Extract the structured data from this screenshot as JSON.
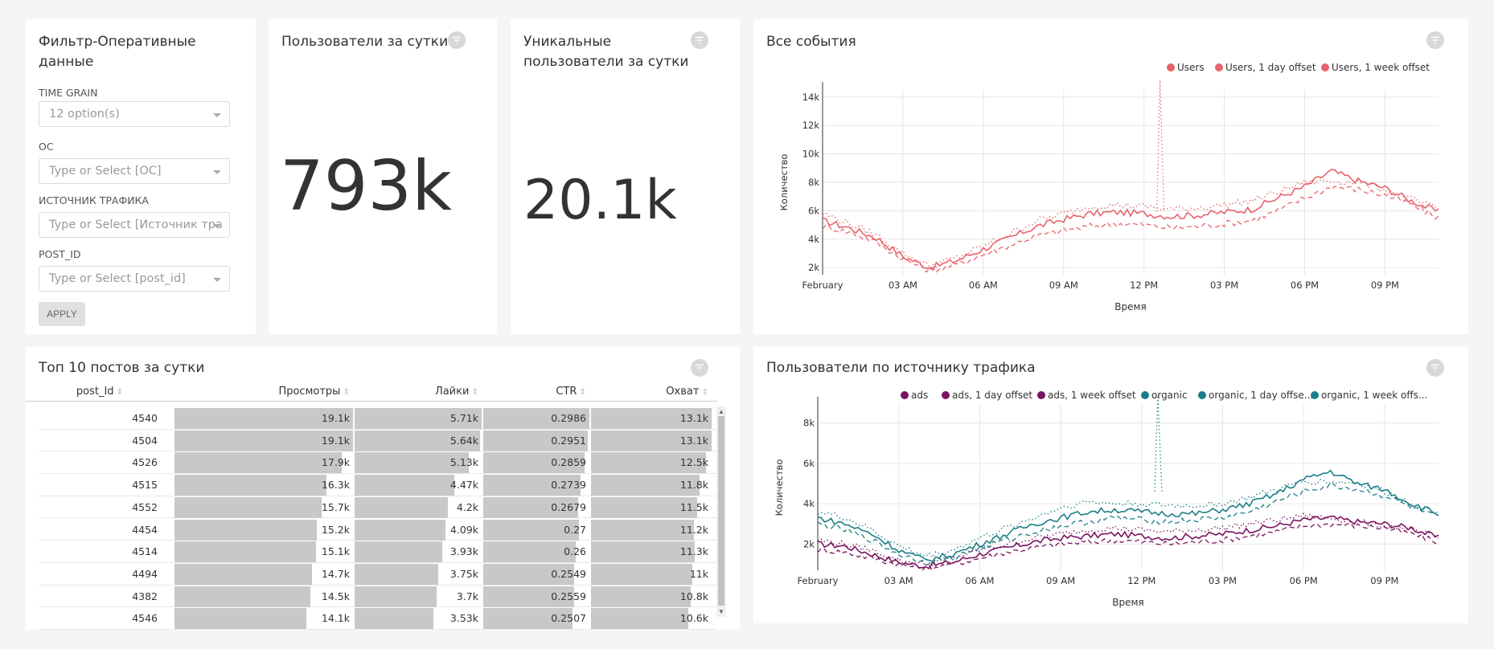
{
  "filter_panel": {
    "title_line1": "Фильтр-Оперативные",
    "title_line2": "данные",
    "time_grain_label": "TIME GRAIN",
    "time_grain_value": "12 option(s)",
    "os_label": "ОС",
    "os_placeholder": "Type or Select [ОС]",
    "source_label": "ИСТОЧНИК ТРАФИКА",
    "source_placeholder": "Type or Select [Источник тра",
    "post_label": "POST_ID",
    "post_placeholder": "Type or Select [post_id]",
    "apply_label": "APPLY"
  },
  "kpi_users": {
    "title": "Пользователи за сутки",
    "value": "793k"
  },
  "kpi_unique": {
    "title_line1": "Уникальные",
    "title_line2": "пользователи за сутки",
    "value": "20.1k"
  },
  "events_chart": {
    "title": "Все события",
    "legend": [
      "Users",
      "Users, 1 day offset",
      "Users, 1 week offset"
    ],
    "ylabel": "Количество",
    "xlabel": "Время",
    "yticks": [
      "2k",
      "4k",
      "6k",
      "8k",
      "10k",
      "12k",
      "14k"
    ],
    "xticks": [
      "February",
      "03 AM",
      "06 AM",
      "09 AM",
      "12 PM",
      "03 PM",
      "06 PM",
      "09 PM"
    ]
  },
  "top_posts": {
    "title": "Топ 10 постов за сутки",
    "columns": [
      "post_Id",
      "Просмотры",
      "Лайки",
      "CTR",
      "Охват"
    ],
    "rows": [
      [
        "4540",
        "19.1k",
        "5.71k",
        "0.2986",
        "13.1k"
      ],
      [
        "4504",
        "19.1k",
        "5.64k",
        "0.2951",
        "13.1k"
      ],
      [
        "4526",
        "17.9k",
        "5.13k",
        "0.2859",
        "12.5k"
      ],
      [
        "4515",
        "16.3k",
        "4.47k",
        "0.2739",
        "11.8k"
      ],
      [
        "4552",
        "15.7k",
        "4.2k",
        "0.2679",
        "11.5k"
      ],
      [
        "4454",
        "15.2k",
        "4.09k",
        "0.27",
        "11.2k"
      ],
      [
        "4514",
        "15.1k",
        "3.93k",
        "0.26",
        "11.3k"
      ],
      [
        "4494",
        "14.7k",
        "3.75k",
        "0.2549",
        "11k"
      ],
      [
        "4382",
        "14.5k",
        "3.7k",
        "0.2559",
        "10.8k"
      ],
      [
        "4546",
        "14.1k",
        "3.53k",
        "0.2507",
        "10.6k"
      ]
    ],
    "bar_fractions": [
      [
        1.0,
        1.0,
        1.0,
        1.0
      ],
      [
        1.0,
        0.988,
        0.988,
        1.0
      ],
      [
        0.937,
        0.898,
        0.957,
        0.954
      ],
      [
        0.853,
        0.783,
        0.917,
        0.901
      ],
      [
        0.822,
        0.736,
        0.897,
        0.878
      ],
      [
        0.796,
        0.716,
        0.904,
        0.855
      ],
      [
        0.791,
        0.688,
        0.871,
        0.863
      ],
      [
        0.77,
        0.657,
        0.854,
        0.84
      ],
      [
        0.759,
        0.648,
        0.857,
        0.824
      ],
      [
        0.738,
        0.618,
        0.84,
        0.809
      ]
    ]
  },
  "traffic_chart": {
    "title": "Пользователи по источнику трафика",
    "legend": [
      "ads",
      "ads, 1 day offset",
      "ads, 1 week offset",
      "organic",
      "organic, 1 day offse...",
      "organic, 1 week offs..."
    ],
    "ylabel": "Количество",
    "xlabel": "Время",
    "yticks": [
      "2k",
      "4k",
      "6k",
      "8k"
    ],
    "xticks": [
      "February",
      "03 AM",
      "06 AM",
      "09 AM",
      "12 PM",
      "03 PM",
      "06 PM",
      "09 PM"
    ]
  },
  "colors": {
    "users": "#e8636b",
    "ads": "#7a1460",
    "organic": "#1b7f87"
  },
  "chart_data": [
    {
      "type": "line",
      "title": "Все события",
      "xlabel": "Время",
      "ylabel": "Количество",
      "x": [
        "00:00",
        "01:00",
        "02:00",
        "03:00",
        "04:00",
        "05:00",
        "06:00",
        "07:00",
        "08:00",
        "09:00",
        "10:00",
        "11:00",
        "12:00",
        "13:00",
        "14:00",
        "15:00",
        "16:00",
        "17:00",
        "18:00",
        "19:00",
        "20:00",
        "21:00",
        "22:00",
        "23:00"
      ],
      "ylim": [
        1500,
        14500
      ],
      "series": [
        {
          "name": "Users",
          "style": "solid",
          "values": [
            5300,
            4800,
            4100,
            2800,
            2000,
            2500,
            3300,
            4100,
            4900,
            5400,
            5800,
            5900,
            5800,
            5600,
            5700,
            5900,
            6100,
            6900,
            7700,
            8800,
            8100,
            7600,
            6700,
            5900
          ]
        },
        {
          "name": "Users, 1 day offset",
          "style": "dashed",
          "values": [
            4900,
            4500,
            3800,
            2600,
            1800,
            2200,
            2900,
            3600,
            4200,
            4600,
            4900,
            5100,
            5000,
            4800,
            4900,
            5100,
            5300,
            6000,
            6900,
            7700,
            7500,
            7100,
            6400,
            5500
          ]
        },
        {
          "name": "Users, 1 week offset",
          "style": "dotted",
          "values": [
            5800,
            5100,
            4300,
            3000,
            2100,
            2700,
            3500,
            4400,
            5300,
            5800,
            6300,
            6400,
            6300,
            6100,
            6200,
            6400,
            6700,
            7300,
            8000,
            8100,
            8000,
            7500,
            6800,
            6100
          ]
        }
      ]
    },
    {
      "type": "line",
      "title": "Пользователи по источнику трафика",
      "xlabel": "Время",
      "ylabel": "Количество",
      "x": [
        "00:00",
        "01:00",
        "02:00",
        "03:00",
        "04:00",
        "05:00",
        "06:00",
        "07:00",
        "08:00",
        "09:00",
        "10:00",
        "11:00",
        "12:00",
        "13:00",
        "14:00",
        "15:00",
        "16:00",
        "17:00",
        "18:00",
        "19:00",
        "20:00",
        "21:00",
        "22:00",
        "23:00"
      ],
      "ylim": [
        700,
        8900
      ],
      "series": [
        {
          "name": "ads",
          "style": "solid",
          "values": [
            2000,
            1900,
            1500,
            1100,
            900,
            1100,
            1500,
            1800,
            2100,
            2300,
            2400,
            2500,
            2400,
            2300,
            2400,
            2500,
            2700,
            2900,
            3200,
            3300,
            3100,
            3000,
            2800,
            2300
          ]
        },
        {
          "name": "ads, 1 day offset",
          "style": "dashed",
          "values": [
            1700,
            1600,
            1300,
            1000,
            800,
            1000,
            1300,
            1600,
            1800,
            2000,
            2100,
            2200,
            2100,
            2000,
            2100,
            2200,
            2400,
            2600,
            2900,
            3000,
            2900,
            2800,
            2500,
            2100
          ]
        },
        {
          "name": "ads, 1 week offset",
          "style": "dotted",
          "values": [
            2200,
            2000,
            1700,
            1200,
            1000,
            1300,
            1700,
            2000,
            2300,
            2500,
            2700,
            2800,
            2700,
            2600,
            2700,
            2800,
            3000,
            3200,
            3400,
            3300,
            3100,
            2900,
            2700,
            2300
          ]
        },
        {
          "name": "organic",
          "style": "solid",
          "values": [
            3300,
            3000,
            2500,
            1700,
            1200,
            1500,
            2000,
            2500,
            3000,
            3300,
            3600,
            3700,
            3600,
            3500,
            3500,
            3700,
            4000,
            4500,
            5200,
            5600,
            5000,
            4700,
            4000,
            3500
          ]
        },
        {
          "name": "organic, 1 day offse...",
          "style": "dashed",
          "values": [
            3000,
            2700,
            2200,
            1500,
            1100,
            1300,
            1800,
            2200,
            2600,
            2900,
            3100,
            3300,
            3200,
            3100,
            3200,
            3300,
            3600,
            4100,
            4600,
            4900,
            4700,
            4400,
            3800,
            3300
          ]
        },
        {
          "name": "organic, 1 week offs...",
          "style": "dotted",
          "values": [
            3600,
            3300,
            2700,
            1900,
            1400,
            1700,
            2300,
            2800,
            3300,
            3800,
            4100,
            4000,
            4000,
            3900,
            3900,
            4000,
            4300,
            4700,
            5100,
            5100,
            5000,
            4600,
            4000,
            3500
          ]
        }
      ]
    }
  ]
}
